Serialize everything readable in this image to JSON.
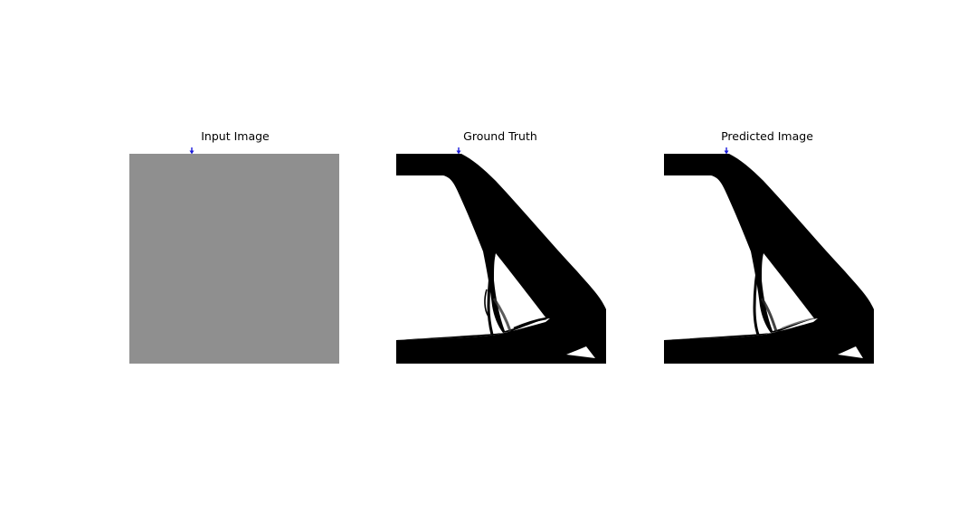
{
  "figure": {
    "panels": [
      {
        "title": "Input Image"
      },
      {
        "title": "Ground Truth"
      },
      {
        "title": "Predicted Image"
      }
    ],
    "colors": {
      "input_fill": "#8f8f8f",
      "material": "#000000",
      "void": "#ffffff",
      "load_marker": "#1a1adb"
    },
    "icons": {
      "load_marker": "load-arrow-icon"
    }
  }
}
